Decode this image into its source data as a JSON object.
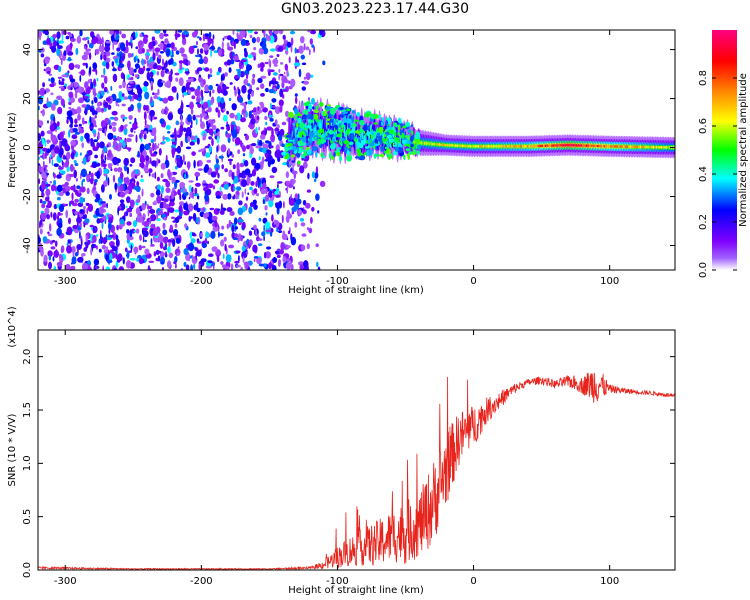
{
  "title": "GN03.2023.223.17.44.G30",
  "chart_data": [
    {
      "type": "heatmap",
      "xlabel": "Height of straight line (km)",
      "ylabel": "Frequency (Hz)",
      "xlim": [
        -320,
        148
      ],
      "ylim": [
        -50,
        48
      ],
      "xticks": [
        -300,
        -200,
        -100,
        0,
        100
      ],
      "yticks": [
        -40,
        -20,
        0,
        20,
        40
      ],
      "colorbar": {
        "label": "Normalized spectral amplitude",
        "range": [
          0.0,
          1.0
        ],
        "ticks": [
          0.0,
          0.2,
          0.4,
          0.6,
          0.8
        ],
        "colormap": [
          "#ffffff",
          "#7f00ff",
          "#0000ff",
          "#00ffff",
          "#00ff00",
          "#ffff00",
          "#ff7f00",
          "#ff0000",
          "#ff0080"
        ]
      },
      "noise_region_x": [
        -320,
        -120
      ],
      "ridge": [
        {
          "x": -135,
          "f": 3,
          "width": 10,
          "amp": 0.35
        },
        {
          "x": -120,
          "f": 8,
          "width": 9,
          "amp": 0.4
        },
        {
          "x": -100,
          "f": 6,
          "width": 9,
          "amp": 0.45
        },
        {
          "x": -80,
          "f": 5,
          "width": 8,
          "amp": 0.45
        },
        {
          "x": -60,
          "f": 4,
          "width": 7,
          "amp": 0.45
        },
        {
          "x": -40,
          "f": 2,
          "width": 5,
          "amp": 0.55
        },
        {
          "x": -20,
          "f": 1,
          "width": 4,
          "amp": 0.6
        },
        {
          "x": 0,
          "f": 0.5,
          "width": 4,
          "amp": 0.6
        },
        {
          "x": 40,
          "f": 0.5,
          "width": 4,
          "amp": 0.65
        },
        {
          "x": 70,
          "f": 1,
          "width": 4,
          "amp": 0.85
        },
        {
          "x": 100,
          "f": 0.5,
          "width": 4,
          "amp": 0.7
        },
        {
          "x": 148,
          "f": 0,
          "width": 4,
          "amp": 0.55
        }
      ]
    },
    {
      "type": "line",
      "xlabel": "Height of straight line (km)",
      "ylabel": "SNR (10 * V/V)",
      "y_multiplier": "(x10^4)",
      "xlim": [
        -320,
        148
      ],
      "ylim": [
        0,
        2.25
      ],
      "xticks": [
        -300,
        -200,
        -100,
        0,
        100
      ],
      "yticks": [
        0.0,
        0.5,
        1.0,
        1.5,
        2.0
      ],
      "color": "#e8231c",
      "series": [
        {
          "x": [
            -320,
            -250,
            -200,
            -150,
            -120,
            -110,
            -100,
            -90,
            -80,
            -70,
            -60,
            -50,
            -40,
            -30,
            -20,
            -10,
            0,
            10,
            20,
            30,
            40,
            50,
            60,
            70,
            80,
            90,
            100,
            110,
            120,
            130,
            148
          ],
          "y": [
            0.02,
            0.01,
            0.01,
            0.01,
            0.02,
            0.05,
            0.12,
            0.18,
            0.22,
            0.25,
            0.32,
            0.35,
            0.42,
            0.62,
            0.95,
            1.25,
            1.35,
            1.5,
            1.6,
            1.7,
            1.76,
            1.78,
            1.74,
            1.77,
            1.73,
            1.75,
            1.7,
            1.68,
            1.67,
            1.66,
            1.63
          ],
          "noise": [
            0.01,
            0.005,
            0.005,
            0.005,
            0.01,
            0.04,
            0.1,
            0.15,
            0.18,
            0.22,
            0.25,
            0.3,
            0.3,
            0.4,
            0.35,
            0.25,
            0.2,
            0.12,
            0.08,
            0.05,
            0.03,
            0.04,
            0.04,
            0.06,
            0.08,
            0.2,
            0.04,
            0.03,
            0.02,
            0.02,
            0.02
          ]
        }
      ]
    }
  ]
}
